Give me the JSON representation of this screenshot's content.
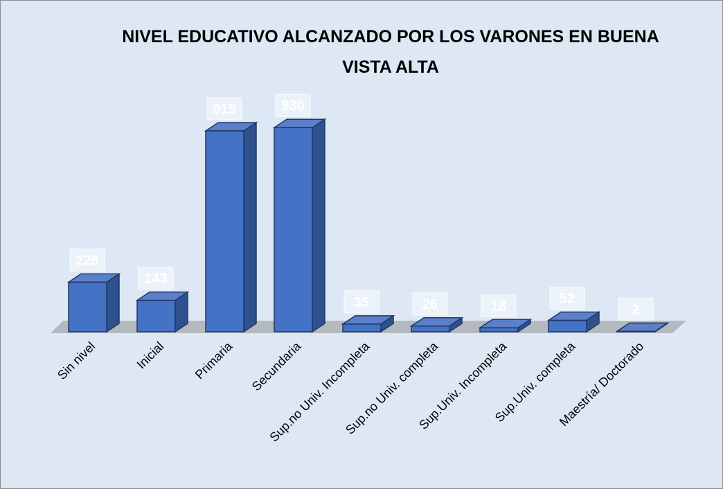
{
  "chart_data": {
    "type": "bar3d",
    "title": "NIVEL EDUCATIVO ALCANZADO POR LOS VARONES EN BUENA VISTA ALTA",
    "categories": [
      "Sin nivel",
      "Inicial",
      "Primaria",
      "Secundaria",
      "Sup.no Univ. Incompleta",
      "Sup.no Univ. completa",
      "Sup.Univ. Incompleta",
      "Sup.Univ. completa",
      "Maestría/ Doctorado"
    ],
    "values": [
      226,
      143,
      915,
      930,
      35,
      26,
      18,
      52,
      2
    ],
    "color": "#4472c4"
  }
}
